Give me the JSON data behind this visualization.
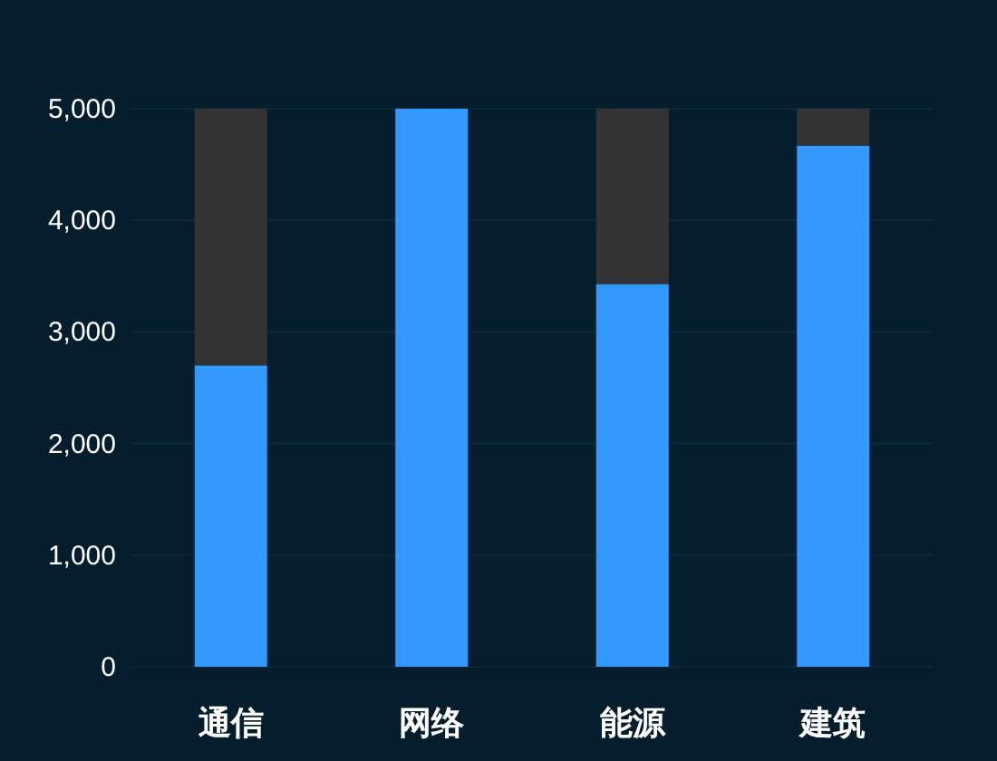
{
  "chart_data": {
    "type": "bar",
    "stacked": true,
    "categories": [
      "通信",
      "网络",
      "能源",
      "建筑"
    ],
    "series": [
      {
        "color": "#3399ff",
        "values": [
          2700,
          5000,
          3430,
          4670
        ]
      },
      {
        "color": "#333333",
        "values": [
          2300,
          0,
          1570,
          330
        ]
      }
    ],
    "ylim": [
      0,
      5000
    ],
    "yticks": [
      0,
      {
        "value": 1000,
        "label": "1,000"
      },
      {
        "value": 2000,
        "label": "2,000"
      },
      {
        "value": 3000,
        "label": "3,000"
      },
      {
        "value": 4000,
        "label": "4,000"
      },
      {
        "value": 5000,
        "label": "5,000"
      }
    ],
    "grid": "y"
  }
}
